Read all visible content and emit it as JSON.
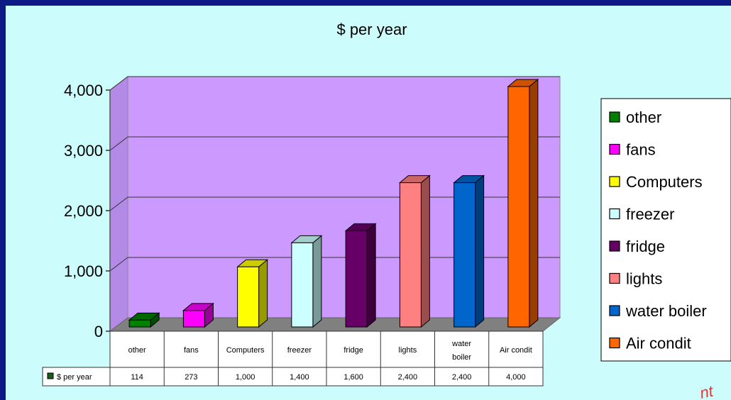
{
  "chart_data": {
    "type": "bar",
    "title": "$ per year",
    "categories": [
      "other",
      "fans",
      "Computers",
      "freezer",
      "fridge",
      "lights",
      "water boiler",
      "Air condit"
    ],
    "table_categories": [
      [
        "other"
      ],
      [
        "fans"
      ],
      [
        "Computers"
      ],
      [
        "freezer"
      ],
      [
        "fridge"
      ],
      [
        "lights"
      ],
      [
        "water",
        "boiler"
      ],
      [
        "Air condit"
      ]
    ],
    "series": [
      {
        "name": "$ per year",
        "values": [
          114,
          273,
          1000,
          1400,
          1600,
          2400,
          2400,
          4000
        ]
      }
    ],
    "table_values": [
      "114",
      "273",
      "1,000",
      "1,400",
      "1,600",
      "2,400",
      "2,400",
      "4,000"
    ],
    "colors": [
      "#008000",
      "#ff00ff",
      "#ffff00",
      "#ccffff",
      "#660066",
      "#ff8080",
      "#0066cc",
      "#ff6600"
    ],
    "ylim": [
      0,
      4000
    ],
    "yticks": [
      0,
      1000,
      2000,
      3000,
      4000
    ],
    "ytick_labels": [
      "0",
      "1,000",
      "2,000",
      "3,000",
      "4,000"
    ],
    "legend": [
      "other",
      "fans",
      "Computers",
      "freezer",
      "fridge",
      "lights",
      "water boiler",
      "Air condit"
    ],
    "legend_position": "right",
    "grid": true,
    "plot_background": "#cc99ff",
    "floor_color": "#808080"
  },
  "stamp_text": "nt"
}
